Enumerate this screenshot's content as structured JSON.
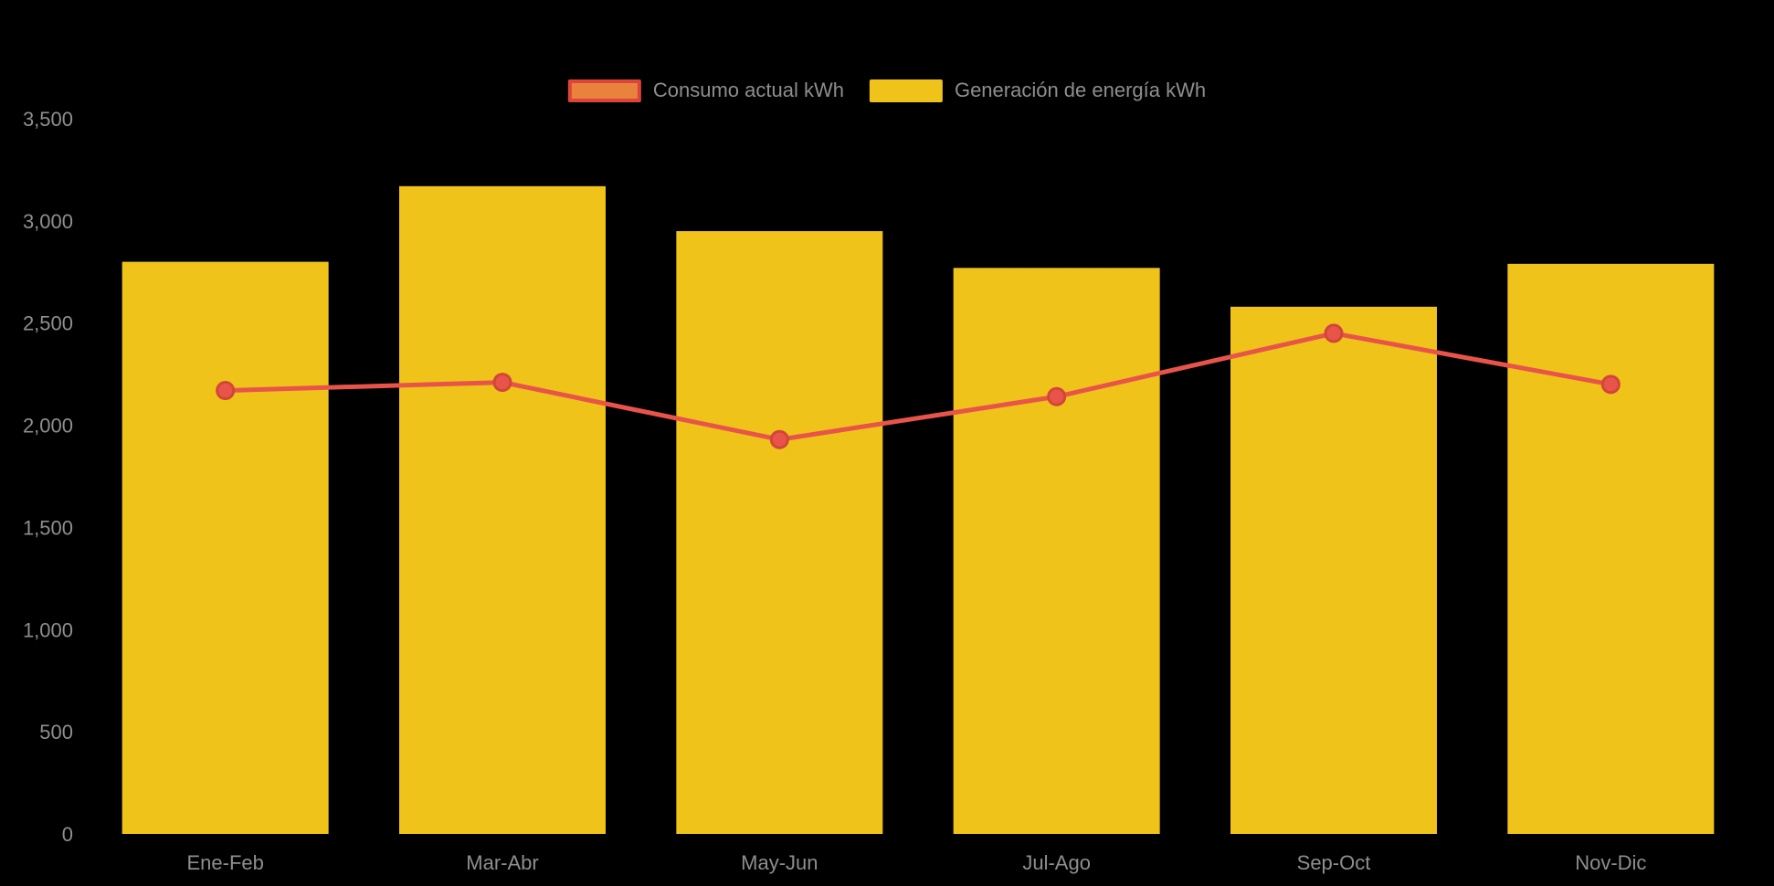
{
  "chart_data": {
    "type": "combo",
    "title": "",
    "categories": [
      "Ene-Feb",
      "Mar-Abr",
      "May-Jun",
      "Jul-Ago",
      "Sep-Oct",
      "Nov-Dic"
    ],
    "series": [
      {
        "name": "Consumo actual kWh",
        "type": "line",
        "values": [
          2170,
          2210,
          1930,
          2140,
          2450,
          2200
        ],
        "color": "#e8544a",
        "point_fill": "#e8544a",
        "point_stroke": "#d2463a",
        "legend_fill": "#e8823c",
        "legend_border": "#e04338"
      },
      {
        "name": "Generación de energía kWh",
        "type": "bar",
        "values": [
          2800,
          3170,
          2950,
          2770,
          2580,
          2790
        ],
        "color": "#efc319"
      }
    ],
    "xlabel": "",
    "ylabel": "",
    "ylim": [
      0,
      3500
    ],
    "ytick_step": 500,
    "ytick_labels": [
      "0",
      "500",
      "1,000",
      "1,500",
      "2,000",
      "2,500",
      "3,000",
      "3,500"
    ],
    "grid": false,
    "legend_position": "top-center",
    "background": "#000000",
    "text_color": "#8e8e8e"
  }
}
